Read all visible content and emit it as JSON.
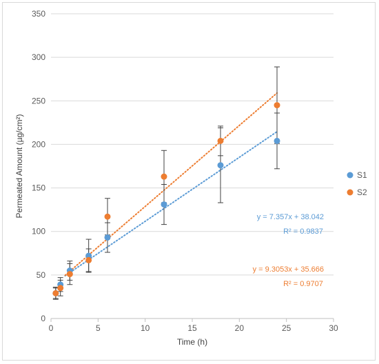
{
  "chart_data": {
    "type": "scatter",
    "title": "",
    "xlabel": "Time (h)",
    "ylabel": "Permeated Amount (µg/cm²)",
    "xlim": [
      0,
      30
    ],
    "ylim": [
      0,
      350
    ],
    "xticks": [
      0,
      5,
      10,
      15,
      20,
      25,
      30
    ],
    "yticks": [
      0,
      50,
      100,
      150,
      200,
      250,
      300,
      350
    ],
    "grid": "horizontal",
    "legend_position": "right",
    "series": [
      {
        "name": "S1",
        "color": "#5B9BD5",
        "x": [
          0.5,
          1,
          2,
          4,
          6,
          12,
          18,
          24
        ],
        "y": [
          29,
          39,
          55,
          72,
          93,
          131,
          176,
          204
        ],
        "err": [
          7,
          8,
          11,
          19,
          17,
          23,
          43,
          32
        ],
        "trendline": {
          "slope": 7.357,
          "intercept": 38.042,
          "from": 1.5,
          "to": 24,
          "equation": "y = 7.357x + 38.042",
          "r2": "R² = 0.9837"
        }
      },
      {
        "name": "S2",
        "color": "#ED7D31",
        "x": [
          0.5,
          1,
          2,
          4,
          6,
          12,
          18,
          24
        ],
        "y": [
          29,
          35,
          51,
          67,
          117,
          163,
          204,
          245
        ],
        "err": [
          6,
          9,
          12,
          13,
          21,
          30,
          17,
          44
        ],
        "trendline": {
          "slope": 9.3053,
          "intercept": 35.666,
          "from": 1.5,
          "to": 24,
          "equation": "y = 9.3053x + 35.666",
          "r2": "R² = 0.9707"
        }
      }
    ]
  }
}
